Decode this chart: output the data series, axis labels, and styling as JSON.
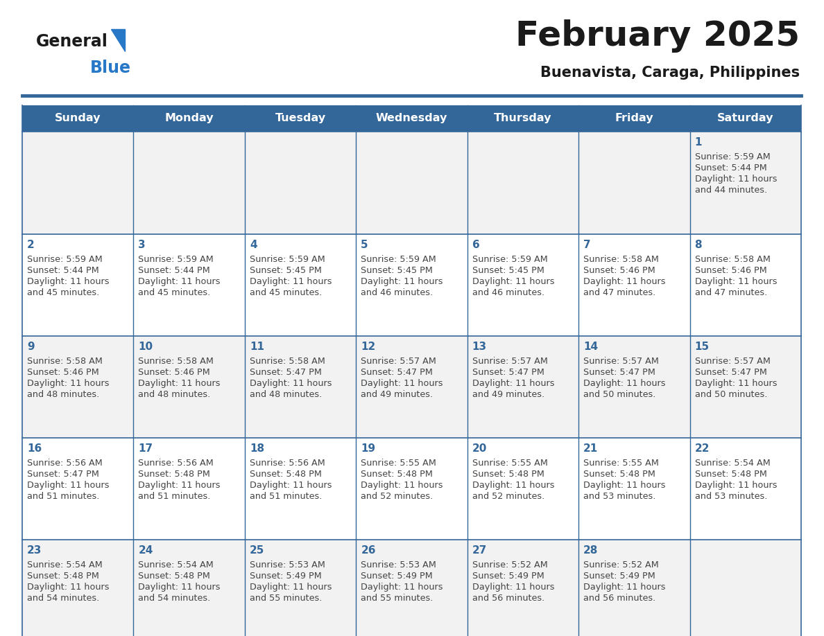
{
  "title": "February 2025",
  "subtitle": "Buenavista, Caraga, Philippines",
  "days_of_week": [
    "Sunday",
    "Monday",
    "Tuesday",
    "Wednesday",
    "Thursday",
    "Friday",
    "Saturday"
  ],
  "header_bg": "#336699",
  "header_text": "#ffffff",
  "row_bg_odd": "#f2f2f2",
  "row_bg_even": "#ffffff",
  "border_color": "#336699",
  "text_color": "#444444",
  "day_num_color": "#336699",
  "title_color": "#1a1a1a",
  "subtitle_color": "#1a1a1a",
  "logo_general_color": "#1a1a1a",
  "logo_blue_color": "#2878c8",
  "calendar_data": {
    "1": {
      "sunrise": "5:59 AM",
      "sunset": "5:44 PM",
      "daylight_hours": 11,
      "daylight_minutes": 44
    },
    "2": {
      "sunrise": "5:59 AM",
      "sunset": "5:44 PM",
      "daylight_hours": 11,
      "daylight_minutes": 45
    },
    "3": {
      "sunrise": "5:59 AM",
      "sunset": "5:44 PM",
      "daylight_hours": 11,
      "daylight_minutes": 45
    },
    "4": {
      "sunrise": "5:59 AM",
      "sunset": "5:45 PM",
      "daylight_hours": 11,
      "daylight_minutes": 45
    },
    "5": {
      "sunrise": "5:59 AM",
      "sunset": "5:45 PM",
      "daylight_hours": 11,
      "daylight_minutes": 46
    },
    "6": {
      "sunrise": "5:59 AM",
      "sunset": "5:45 PM",
      "daylight_hours": 11,
      "daylight_minutes": 46
    },
    "7": {
      "sunrise": "5:58 AM",
      "sunset": "5:46 PM",
      "daylight_hours": 11,
      "daylight_minutes": 47
    },
    "8": {
      "sunrise": "5:58 AM",
      "sunset": "5:46 PM",
      "daylight_hours": 11,
      "daylight_minutes": 47
    },
    "9": {
      "sunrise": "5:58 AM",
      "sunset": "5:46 PM",
      "daylight_hours": 11,
      "daylight_minutes": 48
    },
    "10": {
      "sunrise": "5:58 AM",
      "sunset": "5:46 PM",
      "daylight_hours": 11,
      "daylight_minutes": 48
    },
    "11": {
      "sunrise": "5:58 AM",
      "sunset": "5:47 PM",
      "daylight_hours": 11,
      "daylight_minutes": 48
    },
    "12": {
      "sunrise": "5:57 AM",
      "sunset": "5:47 PM",
      "daylight_hours": 11,
      "daylight_minutes": 49
    },
    "13": {
      "sunrise": "5:57 AM",
      "sunset": "5:47 PM",
      "daylight_hours": 11,
      "daylight_minutes": 49
    },
    "14": {
      "sunrise": "5:57 AM",
      "sunset": "5:47 PM",
      "daylight_hours": 11,
      "daylight_minutes": 50
    },
    "15": {
      "sunrise": "5:57 AM",
      "sunset": "5:47 PM",
      "daylight_hours": 11,
      "daylight_minutes": 50
    },
    "16": {
      "sunrise": "5:56 AM",
      "sunset": "5:47 PM",
      "daylight_hours": 11,
      "daylight_minutes": 51
    },
    "17": {
      "sunrise": "5:56 AM",
      "sunset": "5:48 PM",
      "daylight_hours": 11,
      "daylight_minutes": 51
    },
    "18": {
      "sunrise": "5:56 AM",
      "sunset": "5:48 PM",
      "daylight_hours": 11,
      "daylight_minutes": 51
    },
    "19": {
      "sunrise": "5:55 AM",
      "sunset": "5:48 PM",
      "daylight_hours": 11,
      "daylight_minutes": 52
    },
    "20": {
      "sunrise": "5:55 AM",
      "sunset": "5:48 PM",
      "daylight_hours": 11,
      "daylight_minutes": 52
    },
    "21": {
      "sunrise": "5:55 AM",
      "sunset": "5:48 PM",
      "daylight_hours": 11,
      "daylight_minutes": 53
    },
    "22": {
      "sunrise": "5:54 AM",
      "sunset": "5:48 PM",
      "daylight_hours": 11,
      "daylight_minutes": 53
    },
    "23": {
      "sunrise": "5:54 AM",
      "sunset": "5:48 PM",
      "daylight_hours": 11,
      "daylight_minutes": 54
    },
    "24": {
      "sunrise": "5:54 AM",
      "sunset": "5:48 PM",
      "daylight_hours": 11,
      "daylight_minutes": 54
    },
    "25": {
      "sunrise": "5:53 AM",
      "sunset": "5:49 PM",
      "daylight_hours": 11,
      "daylight_minutes": 55
    },
    "26": {
      "sunrise": "5:53 AM",
      "sunset": "5:49 PM",
      "daylight_hours": 11,
      "daylight_minutes": 55
    },
    "27": {
      "sunrise": "5:52 AM",
      "sunset": "5:49 PM",
      "daylight_hours": 11,
      "daylight_minutes": 56
    },
    "28": {
      "sunrise": "5:52 AM",
      "sunset": "5:49 PM",
      "daylight_hours": 11,
      "daylight_minutes": 56
    }
  },
  "figsize": [
    11.88,
    9.18
  ],
  "dpi": 100
}
